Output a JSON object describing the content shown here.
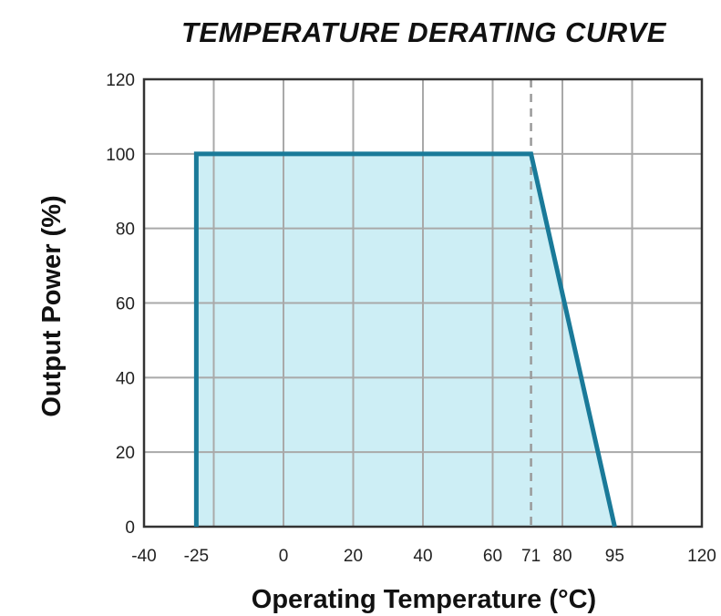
{
  "chart_data": {
    "type": "area",
    "title": "TEMPERATURE DERATING CURVE",
    "xlabel": "Operating Temperature (°C)",
    "ylabel": "Output Power (%)",
    "xlim": [
      -40,
      120
    ],
    "ylim": [
      0,
      120
    ],
    "x_ticks": [
      -40,
      -25,
      0,
      20,
      40,
      60,
      71,
      80,
      95,
      120
    ],
    "x_tick_labels": [
      "-40",
      "-25",
      "0",
      "20",
      "40",
      "60",
      "71",
      "80",
      "95",
      "120"
    ],
    "y_ticks": [
      0,
      20,
      40,
      60,
      80,
      100,
      120
    ],
    "y_tick_labels": [
      "0",
      "20",
      "40",
      "60",
      "80",
      "100",
      "120"
    ],
    "x_grid": [
      -20,
      0,
      20,
      40,
      60,
      80,
      100
    ],
    "y_grid": [
      20,
      40,
      60,
      80,
      100
    ],
    "reference_line_x": 71,
    "series": [
      {
        "name": "derating curve",
        "x": [
          -25,
          -25,
          71,
          95
        ],
        "y": [
          0,
          100,
          100,
          0
        ]
      }
    ],
    "colors": {
      "line": "#1a7a99",
      "fill": "#cdeef5",
      "grid": "#a9a9a9",
      "frame": "#333333",
      "reference": "#9a9a9a"
    }
  }
}
